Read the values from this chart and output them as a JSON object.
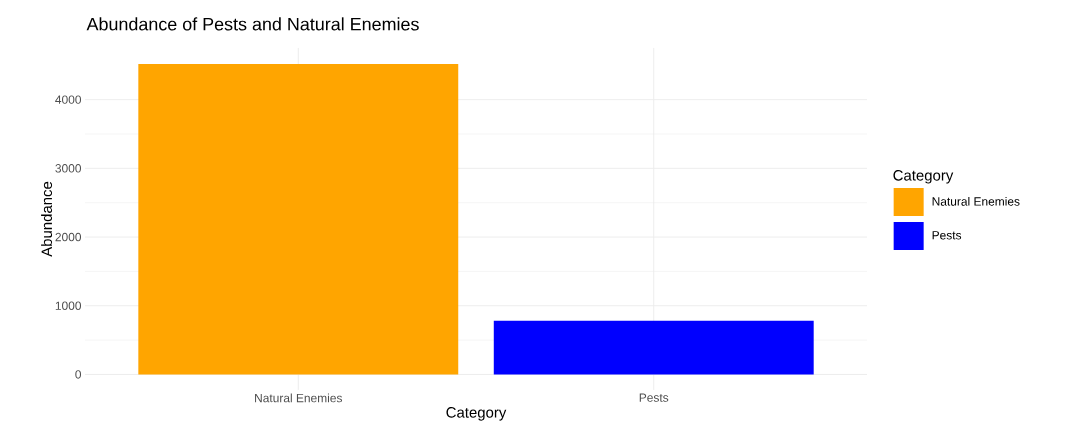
{
  "chart_data": {
    "type": "bar",
    "title": "Abundance of Pests and Natural Enemies",
    "xlabel": "Category",
    "ylabel": "Abundance",
    "legend_title": "Category",
    "categories": [
      "Natural Enemies",
      "Pests"
    ],
    "series": [
      {
        "name": "Natural Enemies",
        "color": "#ffa500",
        "values": [
          4520,
          null
        ]
      },
      {
        "name": "Pests",
        "color": "#0000ff",
        "values": [
          null,
          780
        ]
      }
    ],
    "ylim": [
      -226,
      4752
    ],
    "yticks": [
      0,
      1000,
      2000,
      3000,
      4000
    ],
    "grid": true,
    "legend": "right"
  }
}
